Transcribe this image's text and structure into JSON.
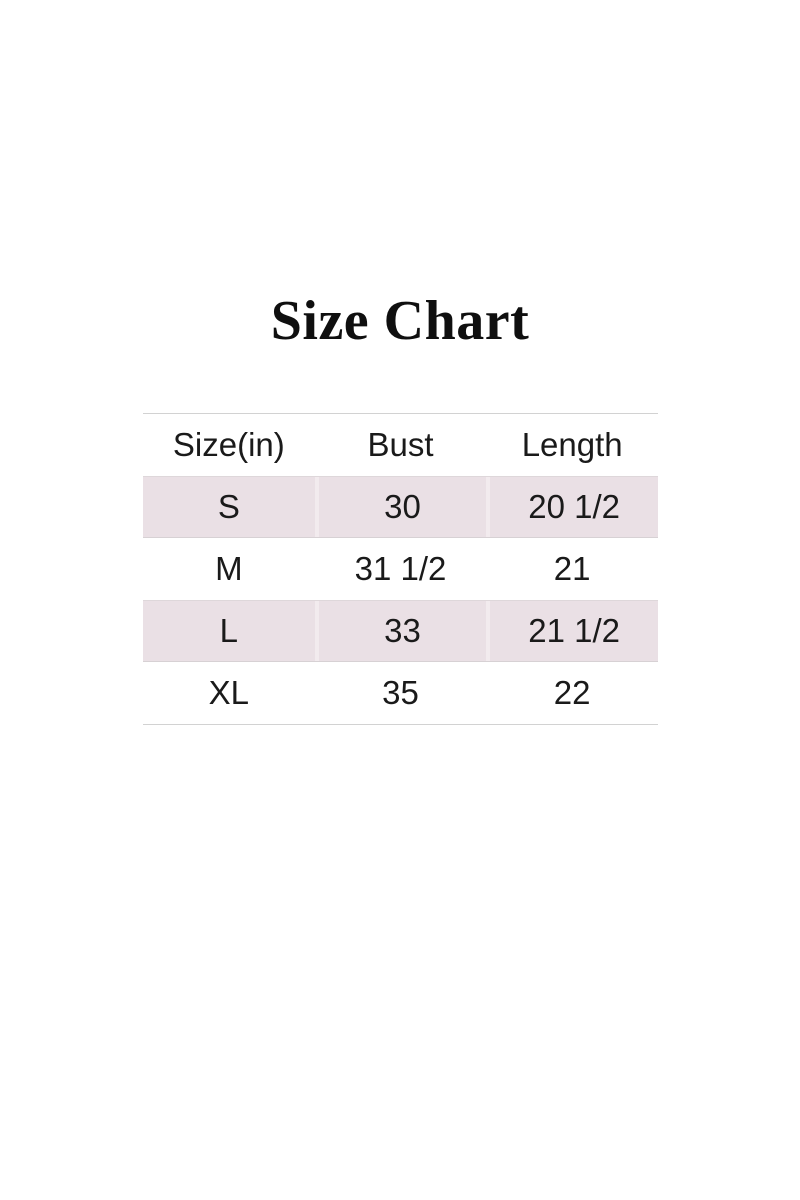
{
  "title": "Size Chart",
  "table": {
    "columns": [
      "Size(in)",
      "Bust",
      "Length"
    ],
    "rows": [
      {
        "size": "S",
        "bust": "30",
        "length": "20 1/2"
      },
      {
        "size": "M",
        "bust": "31 1/2",
        "length": "21"
      },
      {
        "size": "L",
        "bust": "33",
        "length": "21 1/2"
      },
      {
        "size": "XL",
        "bust": "35",
        "length": "22"
      }
    ]
  },
  "colors": {
    "background": "#ffffff",
    "title": "#0f0f0f",
    "text": "#1a1a1a",
    "stripe": "#eae0e5",
    "stripe_separator": "#f2ebee",
    "stripe_edge_top": "#ded7da",
    "stripe_edge_bottom": "#d7d1d4",
    "table_border": "#d2d2d2"
  }
}
